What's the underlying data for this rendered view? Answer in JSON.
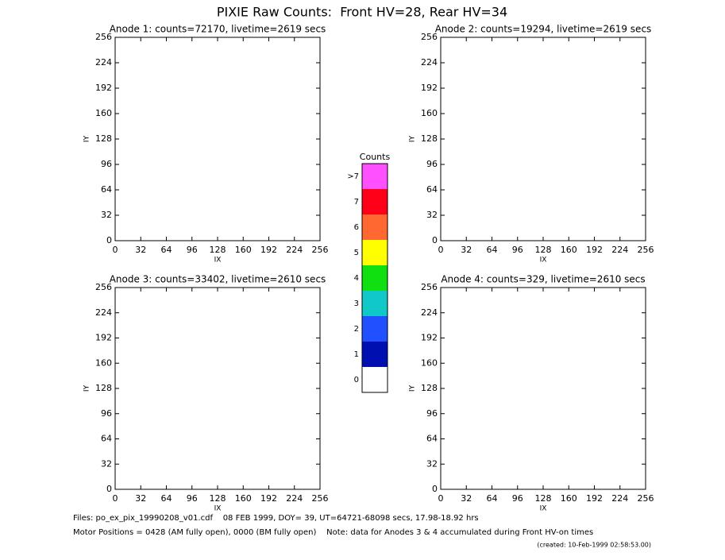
{
  "title": "PIXIE Raw Counts:  Front HV=28, Rear HV=34",
  "chart_data": [
    {
      "type": "heatmap",
      "title": "Anode 1: counts=72170, livetime=2619 secs",
      "xlabel": "IX",
      "ylabel": "IY",
      "xlim": [
        0,
        256
      ],
      "ylim": [
        0,
        256
      ],
      "xticks": [
        0,
        32,
        64,
        96,
        128,
        160,
        192,
        224,
        256
      ],
      "yticks": [
        0,
        32,
        64,
        96,
        128,
        160,
        192,
        224,
        256
      ]
    },
    {
      "type": "heatmap",
      "title": "Anode 2: counts=19294, livetime=2619 secs",
      "xlabel": "IX",
      "ylabel": "IY",
      "xlim": [
        0,
        256
      ],
      "ylim": [
        0,
        256
      ],
      "xticks": [
        0,
        32,
        64,
        96,
        128,
        160,
        192,
        224,
        256
      ],
      "yticks": [
        0,
        32,
        64,
        96,
        128,
        160,
        192,
        224,
        256
      ]
    },
    {
      "type": "heatmap",
      "title": "Anode 3: counts=33402, livetime=2610 secs",
      "xlabel": "IX",
      "ylabel": "IY",
      "xlim": [
        0,
        256
      ],
      "ylim": [
        0,
        256
      ],
      "xticks": [
        0,
        32,
        64,
        96,
        128,
        160,
        192,
        224,
        256
      ],
      "yticks": [
        0,
        32,
        64,
        96,
        128,
        160,
        192,
        224,
        256
      ]
    },
    {
      "type": "heatmap",
      "title": "Anode 4: counts=329, livetime=2610 secs",
      "xlabel": "IX",
      "ylabel": "IY",
      "xlim": [
        0,
        256
      ],
      "ylim": [
        0,
        256
      ],
      "xticks": [
        0,
        32,
        64,
        96,
        128,
        160,
        192,
        224,
        256
      ],
      "yticks": [
        0,
        32,
        64,
        96,
        128,
        160,
        192,
        224,
        256
      ]
    }
  ],
  "colorbar": {
    "title": "Counts",
    "levels": [
      {
        "label": 0,
        "color": "#ffffff"
      },
      {
        "label": 1,
        "color": "#0010b0"
      },
      {
        "label": 2,
        "color": "#2050ff"
      },
      {
        "label": 3,
        "color": "#10c8c8"
      },
      {
        "label": 4,
        "color": "#10e010"
      },
      {
        "label": 5,
        "color": "#ffff00"
      },
      {
        "label": 6,
        "color": "#ff6830"
      },
      {
        "label": 7,
        "color": "#ff0018"
      },
      {
        "label": ">7",
        "color": "#ff50ff"
      }
    ]
  },
  "footer": [
    "Files: po_ex_pix_19990208_v01.cdf    08 FEB 1999, DOY= 39, UT=64721-68098 secs, 17.98-18.92 hrs",
    "Motor Positions = 0428 (AM fully open), 0000 (BM fully open)    Note: data for Anodes 3 & 4 accumulated during Front HV-on times"
  ],
  "created": "(created: 10-Feb-1999 02:58:53.00)"
}
